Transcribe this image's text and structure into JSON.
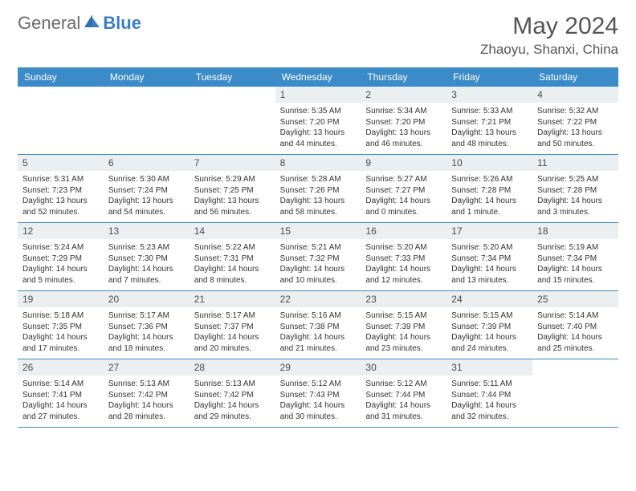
{
  "brand": {
    "part1": "General",
    "part2": "Blue"
  },
  "title": "May 2024",
  "location": "Zhaoyu, Shanxi, China",
  "colors": {
    "header_bg": "#3b8bc9",
    "header_text": "#ffffff",
    "daynum_bg": "#eceff1",
    "rule": "#3b8bc9",
    "body_text": "#333333",
    "title_text": "#555555",
    "logo_gray": "#6a6a6a",
    "logo_blue": "#3a7fc4"
  },
  "day_names": [
    "Sunday",
    "Monday",
    "Tuesday",
    "Wednesday",
    "Thursday",
    "Friday",
    "Saturday"
  ],
  "weeks": [
    [
      null,
      null,
      null,
      {
        "d": "1",
        "sr": "5:35 AM",
        "ss": "7:20 PM",
        "dl": "13 hours and 44 minutes."
      },
      {
        "d": "2",
        "sr": "5:34 AM",
        "ss": "7:20 PM",
        "dl": "13 hours and 46 minutes."
      },
      {
        "d": "3",
        "sr": "5:33 AM",
        "ss": "7:21 PM",
        "dl": "13 hours and 48 minutes."
      },
      {
        "d": "4",
        "sr": "5:32 AM",
        "ss": "7:22 PM",
        "dl": "13 hours and 50 minutes."
      }
    ],
    [
      {
        "d": "5",
        "sr": "5:31 AM",
        "ss": "7:23 PM",
        "dl": "13 hours and 52 minutes."
      },
      {
        "d": "6",
        "sr": "5:30 AM",
        "ss": "7:24 PM",
        "dl": "13 hours and 54 minutes."
      },
      {
        "d": "7",
        "sr": "5:29 AM",
        "ss": "7:25 PM",
        "dl": "13 hours and 56 minutes."
      },
      {
        "d": "8",
        "sr": "5:28 AM",
        "ss": "7:26 PM",
        "dl": "13 hours and 58 minutes."
      },
      {
        "d": "9",
        "sr": "5:27 AM",
        "ss": "7:27 PM",
        "dl": "14 hours and 0 minutes."
      },
      {
        "d": "10",
        "sr": "5:26 AM",
        "ss": "7:28 PM",
        "dl": "14 hours and 1 minute."
      },
      {
        "d": "11",
        "sr": "5:25 AM",
        "ss": "7:28 PM",
        "dl": "14 hours and 3 minutes."
      }
    ],
    [
      {
        "d": "12",
        "sr": "5:24 AM",
        "ss": "7:29 PM",
        "dl": "14 hours and 5 minutes."
      },
      {
        "d": "13",
        "sr": "5:23 AM",
        "ss": "7:30 PM",
        "dl": "14 hours and 7 minutes."
      },
      {
        "d": "14",
        "sr": "5:22 AM",
        "ss": "7:31 PM",
        "dl": "14 hours and 8 minutes."
      },
      {
        "d": "15",
        "sr": "5:21 AM",
        "ss": "7:32 PM",
        "dl": "14 hours and 10 minutes."
      },
      {
        "d": "16",
        "sr": "5:20 AM",
        "ss": "7:33 PM",
        "dl": "14 hours and 12 minutes."
      },
      {
        "d": "17",
        "sr": "5:20 AM",
        "ss": "7:34 PM",
        "dl": "14 hours and 13 minutes."
      },
      {
        "d": "18",
        "sr": "5:19 AM",
        "ss": "7:34 PM",
        "dl": "14 hours and 15 minutes."
      }
    ],
    [
      {
        "d": "19",
        "sr": "5:18 AM",
        "ss": "7:35 PM",
        "dl": "14 hours and 17 minutes."
      },
      {
        "d": "20",
        "sr": "5:17 AM",
        "ss": "7:36 PM",
        "dl": "14 hours and 18 minutes."
      },
      {
        "d": "21",
        "sr": "5:17 AM",
        "ss": "7:37 PM",
        "dl": "14 hours and 20 minutes."
      },
      {
        "d": "22",
        "sr": "5:16 AM",
        "ss": "7:38 PM",
        "dl": "14 hours and 21 minutes."
      },
      {
        "d": "23",
        "sr": "5:15 AM",
        "ss": "7:39 PM",
        "dl": "14 hours and 23 minutes."
      },
      {
        "d": "24",
        "sr": "5:15 AM",
        "ss": "7:39 PM",
        "dl": "14 hours and 24 minutes."
      },
      {
        "d": "25",
        "sr": "5:14 AM",
        "ss": "7:40 PM",
        "dl": "14 hours and 25 minutes."
      }
    ],
    [
      {
        "d": "26",
        "sr": "5:14 AM",
        "ss": "7:41 PM",
        "dl": "14 hours and 27 minutes."
      },
      {
        "d": "27",
        "sr": "5:13 AM",
        "ss": "7:42 PM",
        "dl": "14 hours and 28 minutes."
      },
      {
        "d": "28",
        "sr": "5:13 AM",
        "ss": "7:42 PM",
        "dl": "14 hours and 29 minutes."
      },
      {
        "d": "29",
        "sr": "5:12 AM",
        "ss": "7:43 PM",
        "dl": "14 hours and 30 minutes."
      },
      {
        "d": "30",
        "sr": "5:12 AM",
        "ss": "7:44 PM",
        "dl": "14 hours and 31 minutes."
      },
      {
        "d": "31",
        "sr": "5:11 AM",
        "ss": "7:44 PM",
        "dl": "14 hours and 32 minutes."
      },
      null
    ]
  ],
  "labels": {
    "sunrise": "Sunrise:",
    "sunset": "Sunset:",
    "daylight": "Daylight:"
  }
}
